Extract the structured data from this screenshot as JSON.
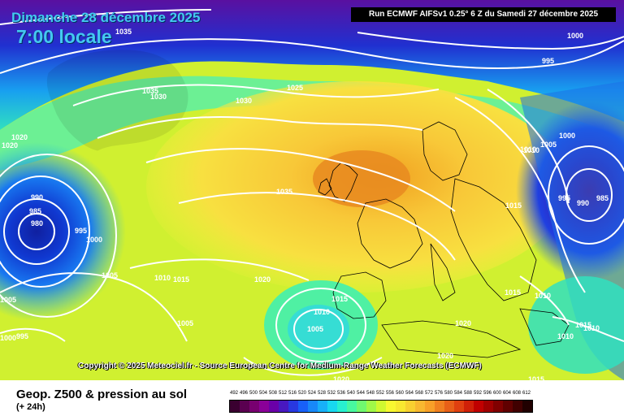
{
  "header": {
    "date": "Dimanche 28 décembre 2025",
    "time": "7:00 locale",
    "run": "Run ECMWF AIFSv1 0.25° 6 Z du Samedi 27 décembre 2025"
  },
  "copyright": "Copyright © 2025 Meteociel.fr - Source European Centre for Medium-Range Weather Forecasts (ECMWF)",
  "footer": {
    "product": "Geop. Z500 & pression au sol",
    "lead": "(+ 24h)"
  },
  "isobar_labels": [
    "1035",
    "1035",
    "1030",
    "1025",
    "1030",
    "1020",
    "1020",
    "990",
    "985",
    "980",
    "995",
    "1000",
    "1005",
    "1005",
    "1010",
    "1015",
    "1020",
    "1035",
    "1015",
    "1010",
    "1005",
    "1000",
    "995",
    "1015",
    "1005",
    "1010",
    "1015",
    "1010",
    "1010",
    "1015",
    "1010",
    "1020",
    "1020",
    "1000",
    "995",
    "985",
    "990",
    "995",
    "1000",
    "1005",
    "1010",
    "1015",
    "1020"
  ],
  "legend": {
    "labels": [
      "492",
      "496",
      "500",
      "504",
      "508",
      "512",
      "516",
      "520",
      "524",
      "528",
      "532",
      "536",
      "540",
      "544",
      "548",
      "552",
      "556",
      "560",
      "564",
      "568",
      "572",
      "576",
      "580",
      "584",
      "588",
      "592",
      "596",
      "600",
      "604",
      "608",
      "612"
    ],
    "colors": [
      "#3a0030",
      "#5a0050",
      "#780070",
      "#8a0098",
      "#6a00a8",
      "#4818c0",
      "#2838e0",
      "#1860f8",
      "#1888f8",
      "#18b0f8",
      "#18d8f0",
      "#28f0d0",
      "#48f8a0",
      "#70f870",
      "#a0f848",
      "#d0f830",
      "#f8f830",
      "#f8e830",
      "#f8d030",
      "#f8b830",
      "#f8a028",
      "#f08020",
      "#e86018",
      "#e04010",
      "#d02008",
      "#c00000",
      "#a00000",
      "#800000",
      "#600000",
      "#400000",
      "#200000"
    ]
  }
}
